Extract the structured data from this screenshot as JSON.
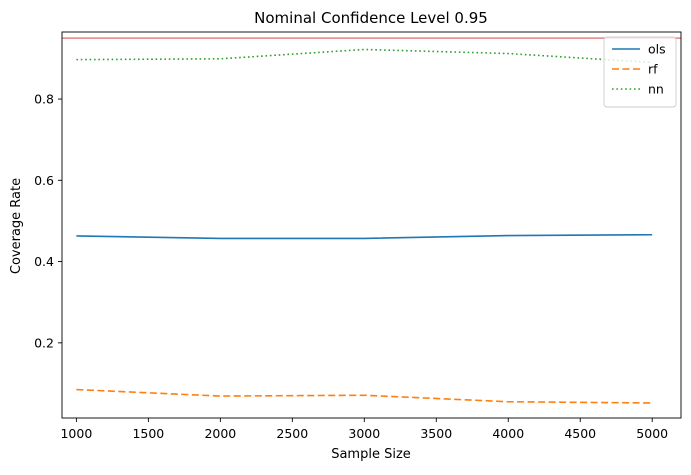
{
  "chart_data": {
    "type": "line",
    "title": "Nominal Confidence Level 0.95",
    "xlabel": "Sample Size",
    "ylabel": "Coverage Rate",
    "x": [
      1000,
      2000,
      3000,
      4000,
      5000
    ],
    "xlim": [
      900,
      5200
    ],
    "ylim": [
      0.015,
      0.965
    ],
    "xticks": [
      1000,
      1500,
      2000,
      2500,
      3000,
      3500,
      4000,
      4500,
      5000
    ],
    "yticks": [
      0.2,
      0.4,
      0.6,
      0.8
    ],
    "ytick_labels": [
      "0.2",
      "0.4",
      "0.6",
      "0.8"
    ],
    "reference_line": {
      "y": 0.95,
      "color": "#d62728"
    },
    "series": [
      {
        "name": "ols",
        "color": "#1f77b4",
        "style": "solid",
        "values": [
          0.463,
          0.457,
          0.457,
          0.464,
          0.466
        ]
      },
      {
        "name": "rf",
        "color": "#ff7f0e",
        "style": "dashed",
        "values": [
          0.085,
          0.069,
          0.071,
          0.055,
          0.052
        ]
      },
      {
        "name": "nn",
        "color": "#2ca02c",
        "style": "dotted",
        "values": [
          0.897,
          0.899,
          0.922,
          0.912,
          0.89
        ]
      }
    ],
    "legend": {
      "position": "top-right"
    },
    "grid": false
  }
}
